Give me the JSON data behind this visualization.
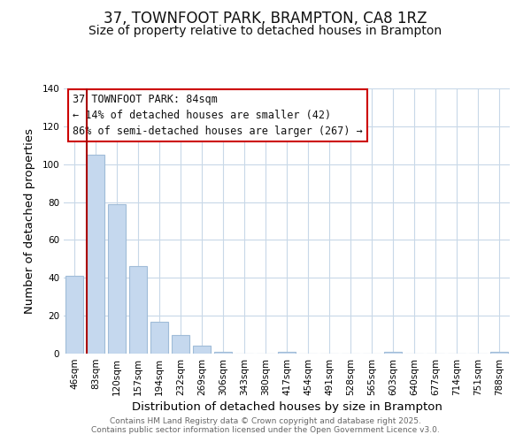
{
  "title": "37, TOWNFOOT PARK, BRAMPTON, CA8 1RZ",
  "subtitle": "Size of property relative to detached houses in Brampton",
  "xlabel": "Distribution of detached houses by size in Brampton",
  "ylabel": "Number of detached properties",
  "bar_labels": [
    "46sqm",
    "83sqm",
    "120sqm",
    "157sqm",
    "194sqm",
    "232sqm",
    "269sqm",
    "306sqm",
    "343sqm",
    "380sqm",
    "417sqm",
    "454sqm",
    "491sqm",
    "528sqm",
    "565sqm",
    "603sqm",
    "640sqm",
    "677sqm",
    "714sqm",
    "751sqm",
    "788sqm"
  ],
  "bar_values": [
    41,
    105,
    79,
    46,
    17,
    10,
    4,
    1,
    0,
    0,
    1,
    0,
    0,
    0,
    0,
    1,
    0,
    0,
    0,
    0,
    1
  ],
  "bar_color": "#c5d8ee",
  "bar_edge_color": "#a0bcd8",
  "vline_color": "#aa0000",
  "annotation_title": "37 TOWNFOOT PARK: 84sqm",
  "annotation_line1": "← 14% of detached houses are smaller (42)",
  "annotation_line2": "86% of semi-detached houses are larger (267) →",
  "annotation_box_color": "#ffffff",
  "annotation_box_edge": "#cc0000",
  "ylim": [
    0,
    140
  ],
  "yticks": [
    0,
    20,
    40,
    60,
    80,
    100,
    120,
    140
  ],
  "footer1": "Contains HM Land Registry data © Crown copyright and database right 2025.",
  "footer2": "Contains public sector information licensed under the Open Government Licence v3.0.",
  "bg_color": "#ffffff",
  "grid_color": "#c8d8e8",
  "title_fontsize": 12,
  "subtitle_fontsize": 10,
  "axis_label_fontsize": 9.5,
  "tick_fontsize": 7.5,
  "annotation_fontsize": 8.5,
  "footer_fontsize": 6.5
}
